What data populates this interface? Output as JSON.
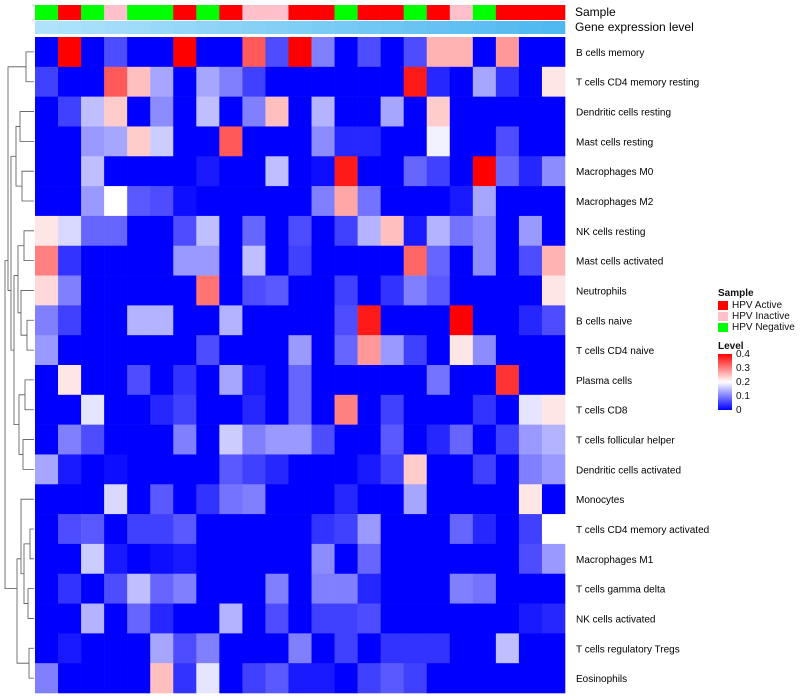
{
  "chart_data": {
    "type": "heatmap",
    "title": "",
    "annotation_tracks": [
      "Sample",
      "Gene expression level"
    ],
    "sample_annotation": [
      "N",
      "A",
      "N",
      "I",
      "N",
      "N",
      "A",
      "N",
      "A",
      "I",
      "I",
      "A",
      "A",
      "N",
      "A",
      "A",
      "N",
      "A",
      "I",
      "N",
      "A",
      "A",
      "A"
    ],
    "expression_gradient": {
      "from": "#aee3fb",
      "to": "#4fb8f0"
    },
    "rows": [
      "B cells memory",
      "T cells CD4 memory resting",
      "Dendritic cells resting",
      "Mast cells resting",
      "Macrophages M0",
      "Macrophages M2",
      "NK cells resting",
      "Mast cells activated",
      "Neutrophils",
      "B cells naive",
      "T cells CD4 naive",
      "Plasma cells",
      "T cells CD8",
      "T cells follicular helper",
      "Dendritic cells activated",
      "Monocytes",
      "T cells CD4 memory activated",
      "Macrophages M1",
      "T cells gamma delta",
      "NK cells activated",
      "T cells regulatory  Tregs",
      "Eosinophils"
    ],
    "values": [
      [
        0,
        0.4,
        0,
        0.06,
        0,
        0,
        0.4,
        0,
        0,
        0.33,
        0.06,
        0.4,
        0.1,
        0,
        0.06,
        0,
        0.06,
        0.26,
        0.26,
        0,
        0.28,
        0,
        0
      ],
      [
        0.05,
        0,
        0,
        0.33,
        0.25,
        0.13,
        0,
        0.13,
        0.1,
        0.05,
        0,
        0,
        0,
        0,
        0,
        0,
        0.38,
        0.03,
        0,
        0.13,
        0.04,
        0,
        0.22
      ],
      [
        0,
        0.05,
        0.15,
        0.24,
        0,
        0.11,
        0,
        0.15,
        0,
        0.1,
        0.25,
        0,
        0.14,
        0,
        0,
        0.13,
        0,
        0.24,
        0,
        0,
        0,
        0,
        0
      ],
      [
        0,
        0,
        0.12,
        0.13,
        0.24,
        0.16,
        0,
        0,
        0.33,
        0,
        0,
        0,
        0.11,
        0.03,
        0.03,
        0,
        0,
        0.19,
        0,
        0,
        0.06,
        0,
        0
      ],
      [
        0,
        0,
        0.15,
        0,
        0,
        0,
        0,
        0.02,
        0,
        0,
        0.15,
        0,
        0.01,
        0.38,
        0,
        0,
        0.08,
        0.05,
        0,
        0.4,
        0.08,
        0.03,
        0.11
      ],
      [
        0,
        0,
        0.12,
        0.2,
        0.07,
        0.06,
        0.01,
        0,
        0,
        0,
        0,
        0,
        0.1,
        0.27,
        0.09,
        0,
        0,
        0,
        0.02,
        0.13,
        0,
        0,
        0
      ],
      [
        0.22,
        0.17,
        0.08,
        0.08,
        0,
        0,
        0.06,
        0.15,
        0,
        0.08,
        0,
        0.06,
        0,
        0.05,
        0.14,
        0.25,
        0.02,
        0.14,
        0.09,
        0.11,
        0,
        0.12,
        0
      ],
      [
        0.3,
        0.04,
        0,
        0,
        0,
        0,
        0.12,
        0.12,
        0,
        0.15,
        0,
        0.05,
        0,
        0,
        0,
        0,
        0.32,
        0.08,
        0,
        0.11,
        0,
        0.06,
        0.26
      ],
      [
        0.23,
        0.1,
        0,
        0,
        0,
        0,
        0,
        0.31,
        0,
        0.06,
        0.07,
        0,
        0,
        0.05,
        0,
        0.04,
        0.1,
        0.07,
        0,
        0,
        0,
        0,
        0.22
      ],
      [
        0.1,
        0.05,
        0,
        0,
        0.14,
        0.14,
        0,
        0,
        0.14,
        0,
        0,
        0,
        0,
        0.06,
        0.38,
        0,
        0,
        0,
        0.4,
        0,
        0,
        0.03,
        0.06
      ],
      [
        0.12,
        0,
        0,
        0,
        0,
        0,
        0,
        0.06,
        0,
        0,
        0,
        0.12,
        0,
        0.08,
        0.28,
        0.12,
        0.05,
        0,
        0.22,
        0.11,
        0,
        0,
        0
      ],
      [
        0,
        0.22,
        0,
        0,
        0.06,
        0,
        0.04,
        0,
        0.13,
        0.02,
        0,
        0.08,
        0,
        0,
        0,
        0,
        0,
        0.09,
        0,
        0,
        0.36,
        0,
        0
      ],
      [
        0,
        0,
        0.18,
        0,
        0,
        0.03,
        0.05,
        0,
        0,
        0.03,
        0,
        0.08,
        0,
        0.3,
        0,
        0.05,
        0,
        0,
        0,
        0.04,
        0,
        0.18,
        0.22
      ],
      [
        0,
        0.1,
        0.06,
        0,
        0,
        0,
        0.1,
        0,
        0.16,
        0.1,
        0.12,
        0.12,
        0.06,
        0,
        0,
        0.07,
        0,
        0.03,
        0.08,
        0,
        0.05,
        0.12,
        0.14
      ],
      [
        0.13,
        0.02,
        0,
        0.01,
        0,
        0,
        0,
        0,
        0.07,
        0.05,
        0.03,
        0,
        0,
        0,
        0.02,
        0.05,
        0.24,
        0,
        0,
        0.05,
        0,
        0.1,
        0.12
      ],
      [
        0,
        0,
        0,
        0.17,
        0,
        0.07,
        0,
        0.04,
        0.09,
        0.1,
        0,
        0,
        0,
        0.03,
        0,
        0,
        0.13,
        0,
        0,
        0,
        0,
        0.22,
        0
      ],
      [
        0,
        0.06,
        0.07,
        0,
        0.05,
        0.05,
        0.07,
        0,
        0,
        0,
        0,
        0,
        0.04,
        0.05,
        0.12,
        0,
        0,
        0,
        0.08,
        0.03,
        0,
        0.05,
        0.2
      ],
      [
        0,
        0,
        0.16,
        0.02,
        0,
        0.01,
        0.02,
        0,
        0,
        0,
        0,
        0,
        0.11,
        0,
        0.08,
        0,
        0,
        0,
        0,
        0,
        0,
        0.06,
        0.12
      ],
      [
        0,
        0.04,
        0,
        0.06,
        0.15,
        0.08,
        0.1,
        0,
        0,
        0,
        0.1,
        0,
        0.1,
        0.1,
        0.03,
        0,
        0,
        0,
        0.1,
        0.09,
        0,
        0,
        0
      ],
      [
        0,
        0,
        0.14,
        0,
        0.08,
        0.03,
        0,
        0,
        0.14,
        0,
        0.06,
        0,
        0.05,
        0.05,
        0.06,
        0,
        0,
        0,
        0,
        0,
        0,
        0.02,
        0.03
      ],
      [
        0,
        0.02,
        0,
        0,
        0,
        0.13,
        0.06,
        0.1,
        0,
        0,
        0,
        0.1,
        0,
        0.05,
        0,
        0.04,
        0.04,
        0.04,
        0,
        0,
        0.15,
        0,
        0
      ],
      [
        0.1,
        0,
        0,
        0,
        0,
        0.25,
        0.04,
        0.18,
        0,
        0.05,
        0.07,
        0.02,
        0.02,
        0,
        0.05,
        0.07,
        0.05,
        0,
        0,
        0,
        0,
        0,
        0
      ]
    ],
    "color_scale": {
      "min": 0,
      "mid": 0.2,
      "max": 0.4,
      "low": "#0000ff",
      "middle": "#ffffff",
      "high": "#ff0000"
    }
  },
  "labels": {
    "track_sample": "Sample",
    "track_expression": "Gene expression level"
  },
  "legend": {
    "sample_title": "Sample",
    "items": [
      {
        "code": "A",
        "label": "HPV Active",
        "color": "#ff0000"
      },
      {
        "code": "I",
        "label": "HPV Inactive",
        "color": "#ffc0cb"
      },
      {
        "code": "N",
        "label": "HPV Negative",
        "color": "#00ff00"
      }
    ],
    "level_title": "Level",
    "ticks": [
      "0.4",
      "0.3",
      "0.2",
      "0.1",
      "0"
    ]
  }
}
